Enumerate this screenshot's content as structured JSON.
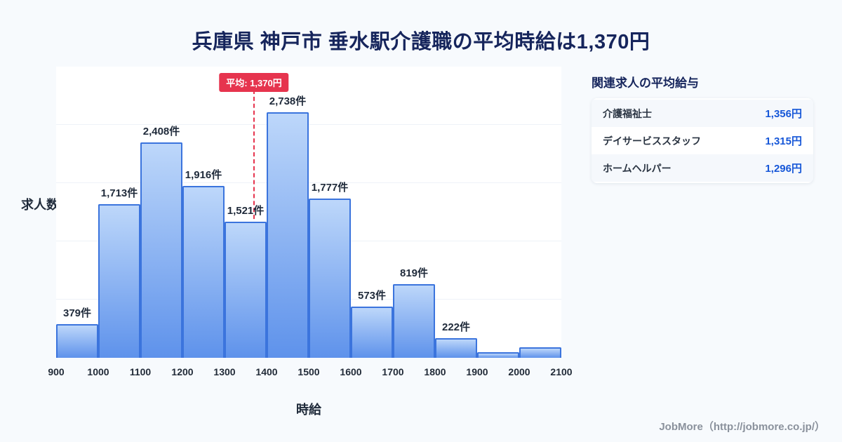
{
  "title": "兵庫県 神戸市 垂水駅介護職の平均時給は1,370円",
  "chart_data": {
    "type": "bar",
    "title": "兵庫県 神戸市 垂水駅介護職の平均時給は1,370円",
    "xlabel": "時給",
    "ylabel": "求人数",
    "x_ticks": [
      900,
      1000,
      1100,
      1200,
      1300,
      1400,
      1500,
      1600,
      1700,
      1800,
      1900,
      2000,
      2100
    ],
    "tick_labels": [
      "900",
      "1000",
      "1100",
      "1200",
      "1300",
      "1400",
      "1500",
      "1600",
      "1700",
      "1800",
      "1900",
      "2000",
      "2100"
    ],
    "values": [
      379,
      1713,
      2408,
      1916,
      1521,
      2738,
      1777,
      573,
      819,
      222,
      60,
      120
    ],
    "bar_labels": [
      "379件",
      "1,713件",
      "2,408件",
      "1,916件",
      "1,521件",
      "2,738件",
      "1,777件",
      "573件",
      "819件",
      "222件",
      "",
      ""
    ],
    "average": 1370,
    "average_label": "平均: 1,370円",
    "ylim": [
      0,
      3250
    ],
    "grid": "horizontal",
    "legend": "none"
  },
  "panel": {
    "title": "関連求人の平均給与",
    "rows": [
      {
        "label": "介護福祉士",
        "value": "1,356円"
      },
      {
        "label": "デイサービススタッフ",
        "value": "1,315円"
      },
      {
        "label": "ホームヘルパー",
        "value": "1,296円"
      }
    ]
  },
  "footer": {
    "text": "JobMore（http://jobmore.co.jp/）"
  },
  "colors": {
    "title_navy": "#16255c",
    "bar_top": "#bdd7fa",
    "bar_bottom": "#5e92eb",
    "bar_border": "#3b74dd",
    "red": "#e6344e",
    "blue": "#1657d8"
  }
}
